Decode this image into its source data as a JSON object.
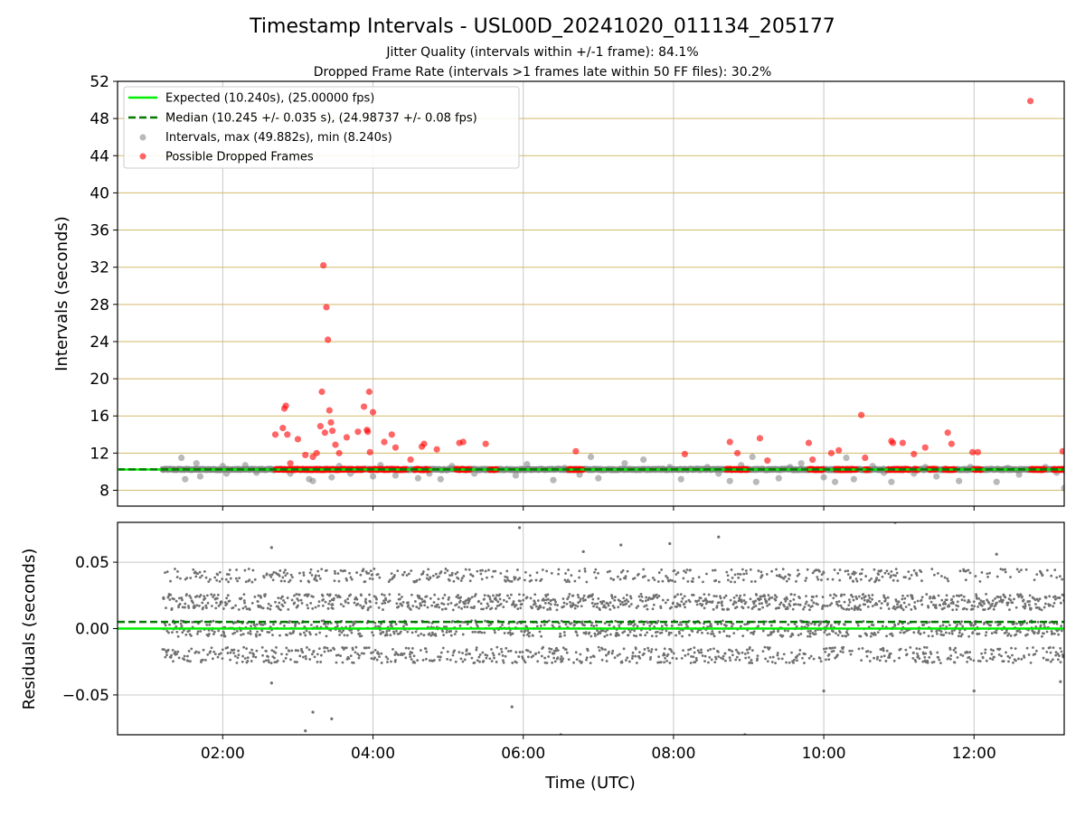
{
  "figure": {
    "title": "Timestamp Intervals - USL00D_20241020_011134_205177",
    "subtitle_1": "Jitter Quality (intervals within +/-1 frame): 84.1%",
    "subtitle_2": "Dropped Frame Rate (intervals >1 frames late within 50 FF files): 30.2%"
  },
  "chart_data": [
    {
      "type": "scatter",
      "ylabel": "Intervals (seconds)",
      "xlabel": "",
      "xlim": [
        0.6,
        13.2
      ],
      "ylim": [
        6.3,
        52
      ],
      "x_unit": "hours UTC",
      "yticks": [
        8,
        12,
        16,
        20,
        24,
        28,
        32,
        36,
        40,
        44,
        48,
        52
      ],
      "ytick_labels": [
        "8",
        "12",
        "16",
        "20",
        "24",
        "28",
        "32",
        "36",
        "40",
        "44",
        "48",
        "52"
      ],
      "xticks": [
        2,
        4,
        6,
        8,
        10,
        12
      ],
      "horizontal_gridlines": "goldenrod",
      "vertical_gridlines": true,
      "legend_position": "upper-left",
      "legend": [
        "Expected (10.240s), (25.00000 fps)",
        "Median (10.245 +/- 0.035 s), (24.98737 +/- 0.08 fps)",
        "Intervals, max (49.882s), min (8.240s)",
        "Possible Dropped Frames"
      ],
      "expected_line": 10.24,
      "median_line": 10.245,
      "series": [
        {
          "name": "Intervals, max (49.882s), min (8.240s)",
          "color": "#808080",
          "points": [
            [
              1.2,
              10.24
            ],
            [
              1.35,
              10.24
            ],
            [
              1.45,
              11.5
            ],
            [
              1.5,
              9.2
            ],
            [
              1.65,
              10.9
            ],
            [
              1.7,
              9.5
            ],
            [
              1.85,
              10.24
            ],
            [
              2.0,
              10.6
            ],
            [
              2.05,
              9.8
            ],
            [
              2.2,
              10.24
            ],
            [
              2.3,
              10.7
            ],
            [
              2.45,
              9.9
            ],
            [
              2.6,
              10.24
            ],
            [
              2.75,
              10.3
            ],
            [
              2.9,
              9.8
            ],
            [
              3.05,
              10.24
            ],
            [
              3.15,
              9.2
            ],
            [
              3.2,
              9.0
            ],
            [
              3.3,
              10.24
            ],
            [
              3.45,
              9.4
            ],
            [
              3.55,
              10.6
            ],
            [
              3.7,
              9.8
            ],
            [
              3.85,
              10.24
            ],
            [
              4.0,
              9.5
            ],
            [
              4.1,
              10.7
            ],
            [
              4.3,
              9.6
            ],
            [
              4.45,
              10.24
            ],
            [
              4.6,
              9.3
            ],
            [
              4.75,
              9.8
            ],
            [
              4.9,
              9.2
            ],
            [
              5.05,
              10.6
            ],
            [
              5.2,
              10.24
            ],
            [
              5.35,
              9.8
            ],
            [
              5.5,
              10.3
            ],
            [
              5.7,
              10.24
            ],
            [
              5.9,
              9.6
            ],
            [
              6.05,
              10.8
            ],
            [
              6.2,
              10.24
            ],
            [
              6.4,
              9.1
            ],
            [
              6.55,
              10.4
            ],
            [
              6.75,
              9.7
            ],
            [
              6.9,
              11.6
            ],
            [
              7.0,
              9.3
            ],
            [
              7.2,
              10.24
            ],
            [
              7.35,
              10.9
            ],
            [
              7.5,
              10.24
            ],
            [
              7.6,
              11.3
            ],
            [
              7.8,
              10.24
            ],
            [
              7.95,
              10.5
            ],
            [
              8.1,
              9.2
            ],
            [
              8.25,
              10.24
            ],
            [
              8.45,
              10.5
            ],
            [
              8.6,
              9.8
            ],
            [
              8.75,
              9.0
            ],
            [
              8.9,
              10.7
            ],
            [
              9.05,
              11.6
            ],
            [
              9.1,
              8.9
            ],
            [
              9.25,
              10.24
            ],
            [
              9.4,
              9.3
            ],
            [
              9.55,
              10.5
            ],
            [
              9.7,
              10.9
            ],
            [
              9.85,
              10.24
            ],
            [
              10.0,
              9.4
            ],
            [
              10.15,
              8.9
            ],
            [
              10.3,
              11.5
            ],
            [
              10.4,
              9.2
            ],
            [
              10.5,
              10.24
            ],
            [
              10.65,
              10.6
            ],
            [
              10.8,
              9.9
            ],
            [
              10.9,
              8.9
            ],
            [
              11.05,
              10.24
            ],
            [
              11.2,
              9.8
            ],
            [
              11.35,
              10.5
            ],
            [
              11.5,
              9.5
            ],
            [
              11.65,
              10.24
            ],
            [
              11.8,
              9.0
            ],
            [
              11.95,
              10.5
            ],
            [
              12.1,
              10.24
            ],
            [
              12.3,
              8.9
            ],
            [
              12.45,
              10.4
            ],
            [
              12.6,
              9.7
            ],
            [
              12.8,
              10.24
            ],
            [
              12.95,
              10.5
            ],
            [
              13.1,
              9.9
            ],
            [
              13.2,
              8.24
            ]
          ]
        },
        {
          "name": "Possible Dropped Frames",
          "color": "#ff0000",
          "points": [
            [
              2.7,
              14.0
            ],
            [
              2.8,
              14.7
            ],
            [
              2.82,
              16.8
            ],
            [
              2.84,
              17.1
            ],
            [
              2.86,
              14.0
            ],
            [
              2.9,
              10.9
            ],
            [
              3.0,
              13.5
            ],
            [
              3.1,
              11.8
            ],
            [
              3.2,
              11.6
            ],
            [
              3.25,
              12.0
            ],
            [
              3.3,
              14.9
            ],
            [
              3.32,
              18.6
            ],
            [
              3.34,
              32.2
            ],
            [
              3.36,
              14.2
            ],
            [
              3.38,
              27.7
            ],
            [
              3.4,
              24.2
            ],
            [
              3.42,
              16.6
            ],
            [
              3.44,
              15.3
            ],
            [
              3.46,
              14.4
            ],
            [
              3.5,
              12.9
            ],
            [
              3.55,
              12.0
            ],
            [
              3.65,
              13.7
            ],
            [
              3.8,
              14.3
            ],
            [
              3.88,
              17.0
            ],
            [
              3.92,
              14.5
            ],
            [
              3.93,
              14.3
            ],
            [
              3.95,
              18.6
            ],
            [
              3.96,
              12.1
            ],
            [
              4.0,
              16.4
            ],
            [
              4.15,
              13.2
            ],
            [
              4.25,
              14.0
            ],
            [
              4.3,
              12.6
            ],
            [
              4.5,
              11.3
            ],
            [
              4.65,
              12.7
            ],
            [
              4.68,
              13.0
            ],
            [
              4.85,
              12.4
            ],
            [
              5.15,
              13.1
            ],
            [
              5.2,
              13.2
            ],
            [
              5.5,
              13.0
            ],
            [
              6.7,
              12.2
            ],
            [
              8.15,
              11.9
            ],
            [
              8.75,
              13.2
            ],
            [
              8.85,
              12.0
            ],
            [
              9.15,
              13.6
            ],
            [
              9.25,
              11.2
            ],
            [
              9.8,
              13.1
            ],
            [
              9.85,
              11.3
            ],
            [
              10.1,
              12.0
            ],
            [
              10.2,
              12.3
            ],
            [
              10.5,
              16.1
            ],
            [
              10.55,
              11.5
            ],
            [
              10.9,
              13.3
            ],
            [
              10.92,
              13.1
            ],
            [
              11.05,
              13.1
            ],
            [
              11.2,
              11.9
            ],
            [
              11.35,
              12.6
            ],
            [
              11.65,
              14.2
            ],
            [
              11.7,
              13.0
            ],
            [
              11.98,
              12.1
            ],
            [
              12.05,
              12.1
            ],
            [
              12.75,
              49.88
            ],
            [
              13.18,
              12.2
            ]
          ]
        }
      ],
      "dense_band": {
        "start": 2.7,
        "end": 13.2,
        "y": 10.24,
        "name": "Possible Dropped Frames"
      }
    },
    {
      "type": "scatter",
      "xlabel": "Time (UTC)",
      "ylabel": "Residuals (seconds)",
      "xlim": [
        0.6,
        13.2
      ],
      "ylim": [
        -0.08,
        0.08
      ],
      "yticks": [
        -0.05,
        0.0,
        0.05
      ],
      "ytick_labels": [
        "−0.05",
        "0.00",
        "0.05"
      ],
      "xticks": [
        2,
        4,
        6,
        8,
        10,
        12
      ],
      "xtick_labels": [
        "02:00",
        "04:00",
        "06:00",
        "08:00",
        "10:00",
        "12:00"
      ],
      "expected_line": 0.0,
      "median_line": 0.005,
      "residuals_cluster_levels": [
        -0.02,
        0.0,
        0.02,
        0.04
      ],
      "outliers": [
        [
          2.65,
          0.061
        ],
        [
          2.65,
          -0.041
        ],
        [
          3.1,
          -0.077
        ],
        [
          3.2,
          -0.063
        ],
        [
          3.45,
          -0.068
        ],
        [
          5.85,
          -0.059
        ],
        [
          5.95,
          0.076
        ],
        [
          6.5,
          -0.08
        ],
        [
          6.8,
          0.058
        ],
        [
          7.3,
          0.063
        ],
        [
          7.95,
          0.064
        ],
        [
          8.6,
          0.069
        ],
        [
          8.95,
          -0.08
        ],
        [
          10.0,
          -0.047
        ],
        [
          10.95,
          0.08
        ],
        [
          12.0,
          -0.047
        ],
        [
          12.3,
          0.056
        ],
        [
          13.15,
          -0.04
        ]
      ],
      "series": [
        {
          "name": "Intervals",
          "color": "#808080"
        }
      ]
    }
  ]
}
